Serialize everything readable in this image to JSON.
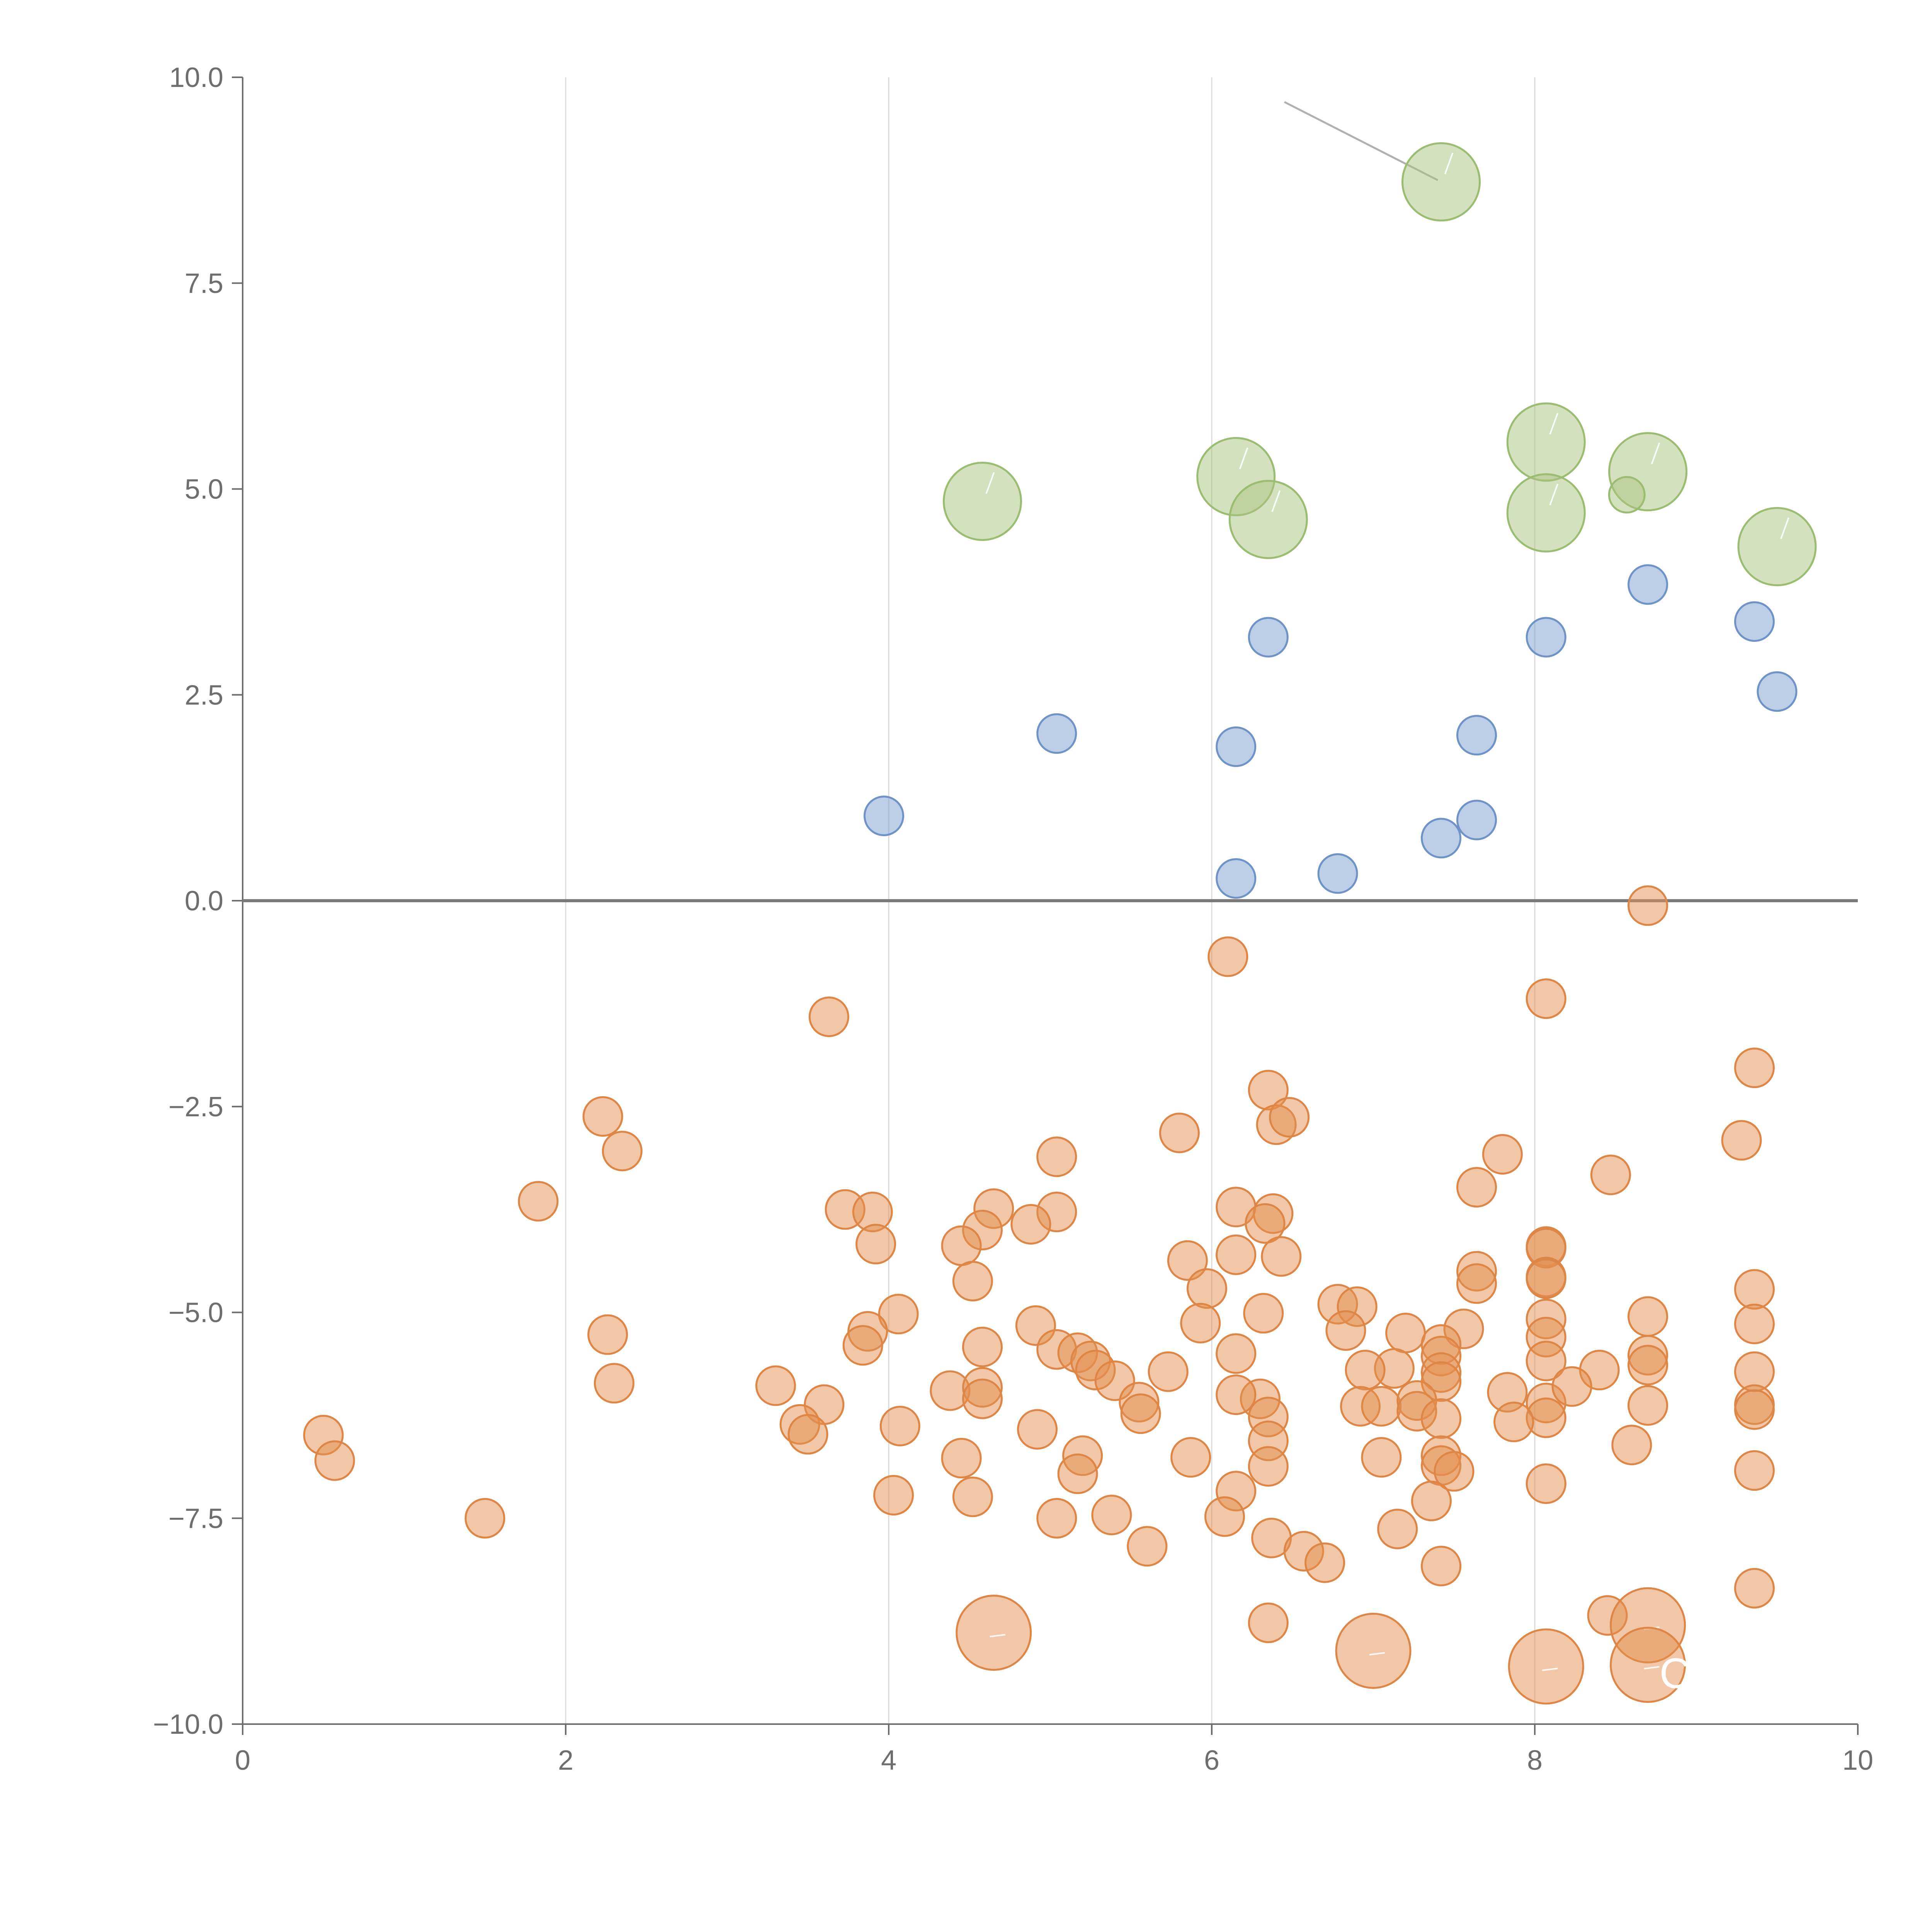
{
  "chart_data": {
    "type": "scatter",
    "title": "",
    "xlabel": "",
    "ylabel": "",
    "xlim": [
      0,
      10
    ],
    "ylim": [
      -10,
      10
    ],
    "x_ticks": [
      "0",
      "2",
      "4",
      "6",
      "8",
      "10"
    ],
    "y_ticks": [
      "10.0",
      "7.5",
      "5.0",
      "2.5",
      "0.0",
      "−2.5",
      "−5.0",
      "−7.5",
      "−10.0"
    ],
    "x_tick_values": [
      0,
      2,
      4,
      6,
      8,
      10
    ],
    "y_tick_values": [
      10,
      7.5,
      5,
      2.5,
      0,
      -2.5,
      -5,
      -7.5,
      -10
    ],
    "grid": "vertical",
    "zero_line": true,
    "corner_text": "C",
    "series": [
      {
        "color": "#a9c47f",
        "stroke": "#9bbd72",
        "size": "large",
        "points": [
          [
            7.42,
            8.73
          ],
          [
            4.58,
            4.85
          ],
          [
            6.15,
            5.15
          ],
          [
            6.35,
            4.63
          ],
          [
            8.07,
            5.57
          ],
          [
            8.07,
            4.71
          ],
          [
            8.7,
            5.21
          ],
          [
            9.5,
            4.3
          ],
          [
            8.57,
            4.93
          ]
        ],
        "small_points": [
          [
            8.57,
            4.93
          ]
        ]
      },
      {
        "color": "#7b9fd0",
        "stroke": "#6f93c6",
        "size": "small",
        "points": [
          [
            3.97,
            1.03
          ],
          [
            5.04,
            2.03
          ],
          [
            6.15,
            1.87
          ],
          [
            6.35,
            3.2
          ],
          [
            8.07,
            3.2
          ],
          [
            7.64,
            2.01
          ],
          [
            7.64,
            0.98
          ],
          [
            7.42,
            0.76
          ],
          [
            6.78,
            0.33
          ],
          [
            6.15,
            0.27
          ],
          [
            8.7,
            3.84
          ],
          [
            9.36,
            3.39
          ],
          [
            9.5,
            2.54
          ]
        ]
      },
      {
        "color": "#e3904f",
        "stroke": "#de8646",
        "size": "small",
        "points": [
          [
            8.7,
            -0.06
          ],
          [
            6.1,
            -0.68
          ],
          [
            8.07,
            -1.19
          ],
          [
            3.63,
            -1.41
          ],
          [
            9.36,
            -2.03
          ],
          [
            2.23,
            -2.62
          ],
          [
            2.35,
            -3.04
          ],
          [
            1.83,
            -3.65
          ],
          [
            6.35,
            -2.3
          ],
          [
            6.4,
            -2.72
          ],
          [
            6.48,
            -2.63
          ],
          [
            5.8,
            -2.82
          ],
          [
            5.04,
            -3.11
          ],
          [
            7.8,
            -3.08
          ],
          [
            9.28,
            -2.91
          ],
          [
            8.47,
            -3.33
          ],
          [
            7.64,
            -3.48
          ],
          [
            3.73,
            -3.75
          ],
          [
            3.9,
            -3.78
          ],
          [
            4.65,
            -3.74
          ],
          [
            5.04,
            -3.78
          ],
          [
            4.88,
            -3.93
          ],
          [
            4.58,
            -4.0
          ],
          [
            3.92,
            -4.17
          ],
          [
            4.45,
            -4.19
          ],
          [
            6.15,
            -3.72
          ],
          [
            6.38,
            -3.8
          ],
          [
            6.33,
            -3.92
          ],
          [
            6.43,
            -4.32
          ],
          [
            6.15,
            -4.3
          ],
          [
            5.85,
            -4.37
          ],
          [
            4.52,
            -4.62
          ],
          [
            8.07,
            -4.2
          ],
          [
            8.07,
            -4.22
          ],
          [
            8.07,
            -4.57
          ],
          [
            8.07,
            -4.59
          ],
          [
            7.64,
            -4.5
          ],
          [
            7.64,
            -4.65
          ],
          [
            5.97,
            -4.71
          ],
          [
            9.36,
            -4.72
          ],
          [
            4.06,
            -5.02
          ],
          [
            3.87,
            -5.23
          ],
          [
            3.84,
            -5.4
          ],
          [
            4.91,
            -5.16
          ],
          [
            5.04,
            -5.45
          ],
          [
            4.58,
            -5.42
          ],
          [
            5.93,
            -5.13
          ],
          [
            6.32,
            -5.01
          ],
          [
            6.15,
            -5.5
          ],
          [
            6.78,
            -4.9
          ],
          [
            6.9,
            -4.93
          ],
          [
            6.83,
            -5.22
          ],
          [
            7.2,
            -5.25
          ],
          [
            7.56,
            -5.2
          ],
          [
            7.42,
            -5.39
          ],
          [
            7.42,
            -5.53
          ],
          [
            7.42,
            -5.73
          ],
          [
            7.42,
            -5.84
          ],
          [
            7.13,
            -5.68
          ],
          [
            6.95,
            -5.7
          ],
          [
            8.07,
            -5.08
          ],
          [
            8.07,
            -5.3
          ],
          [
            8.07,
            -5.59
          ],
          [
            8.7,
            -5.05
          ],
          [
            8.7,
            -5.52
          ],
          [
            8.7,
            -5.64
          ],
          [
            9.36,
            -5.14
          ],
          [
            9.36,
            -5.72
          ],
          [
            8.4,
            -5.7
          ],
          [
            5.17,
            -5.49
          ],
          [
            5.25,
            -5.59
          ],
          [
            5.28,
            -5.7
          ],
          [
            5.4,
            -5.83
          ],
          [
            5.73,
            -5.72
          ],
          [
            2.26,
            -5.27
          ],
          [
            2.3,
            -5.86
          ],
          [
            3.3,
            -5.89
          ],
          [
            3.6,
            -6.12
          ],
          [
            3.45,
            -6.36
          ],
          [
            3.5,
            -6.48
          ],
          [
            4.38,
            -5.95
          ],
          [
            4.58,
            -5.91
          ],
          [
            4.58,
            -6.05
          ],
          [
            5.55,
            -6.09
          ],
          [
            5.56,
            -6.23
          ],
          [
            6.3,
            -6.05
          ],
          [
            6.15,
            -6.0
          ],
          [
            6.35,
            -6.27
          ],
          [
            6.35,
            -6.56
          ],
          [
            6.35,
            -6.87
          ],
          [
            6.92,
            -6.14
          ],
          [
            7.05,
            -6.14
          ],
          [
            7.27,
            -6.07
          ],
          [
            7.27,
            -6.2
          ],
          [
            7.42,
            -6.29
          ],
          [
            7.83,
            -5.97
          ],
          [
            8.07,
            -6.1
          ],
          [
            8.07,
            -6.28
          ],
          [
            7.87,
            -6.33
          ],
          [
            8.23,
            -5.9
          ],
          [
            8.7,
            -6.13
          ],
          [
            9.36,
            -6.12
          ],
          [
            9.36,
            -6.18
          ],
          [
            0.5,
            -6.49
          ],
          [
            0.57,
            -6.8
          ],
          [
            4.07,
            -6.38
          ],
          [
            4.92,
            -6.42
          ],
          [
            5.2,
            -6.74
          ],
          [
            5.17,
            -6.96
          ],
          [
            5.87,
            -6.76
          ],
          [
            4.45,
            -6.77
          ],
          [
            7.05,
            -6.76
          ],
          [
            7.42,
            -6.74
          ],
          [
            7.42,
            -6.86
          ],
          [
            7.5,
            -6.93
          ],
          [
            8.6,
            -6.61
          ],
          [
            9.36,
            -6.92
          ],
          [
            8.07,
            -7.08
          ],
          [
            4.03,
            -7.22
          ],
          [
            4.52,
            -7.24
          ],
          [
            6.15,
            -7.17
          ],
          [
            6.08,
            -7.48
          ],
          [
            7.36,
            -7.29
          ],
          [
            5.04,
            -7.5
          ],
          [
            5.38,
            -7.46
          ],
          [
            1.5,
            -7.5
          ],
          [
            5.6,
            -7.84
          ],
          [
            6.37,
            -7.74
          ],
          [
            6.57,
            -7.9
          ],
          [
            6.7,
            -8.04
          ],
          [
            7.15,
            -7.63
          ],
          [
            7.42,
            -8.08
          ],
          [
            8.45,
            -8.68
          ],
          [
            9.36,
            -8.35
          ],
          [
            6.35,
            -8.77
          ]
        ],
        "large_points": [
          [
            4.65,
            -8.89
          ],
          [
            7.0,
            -9.11
          ],
          [
            8.07,
            -9.3
          ],
          [
            8.7,
            -8.8
          ],
          [
            8.7,
            -9.28
          ]
        ]
      }
    ],
    "callout": {
      "from": [
        6.45,
        9.7
      ],
      "to": [
        7.4,
        8.75
      ]
    }
  }
}
